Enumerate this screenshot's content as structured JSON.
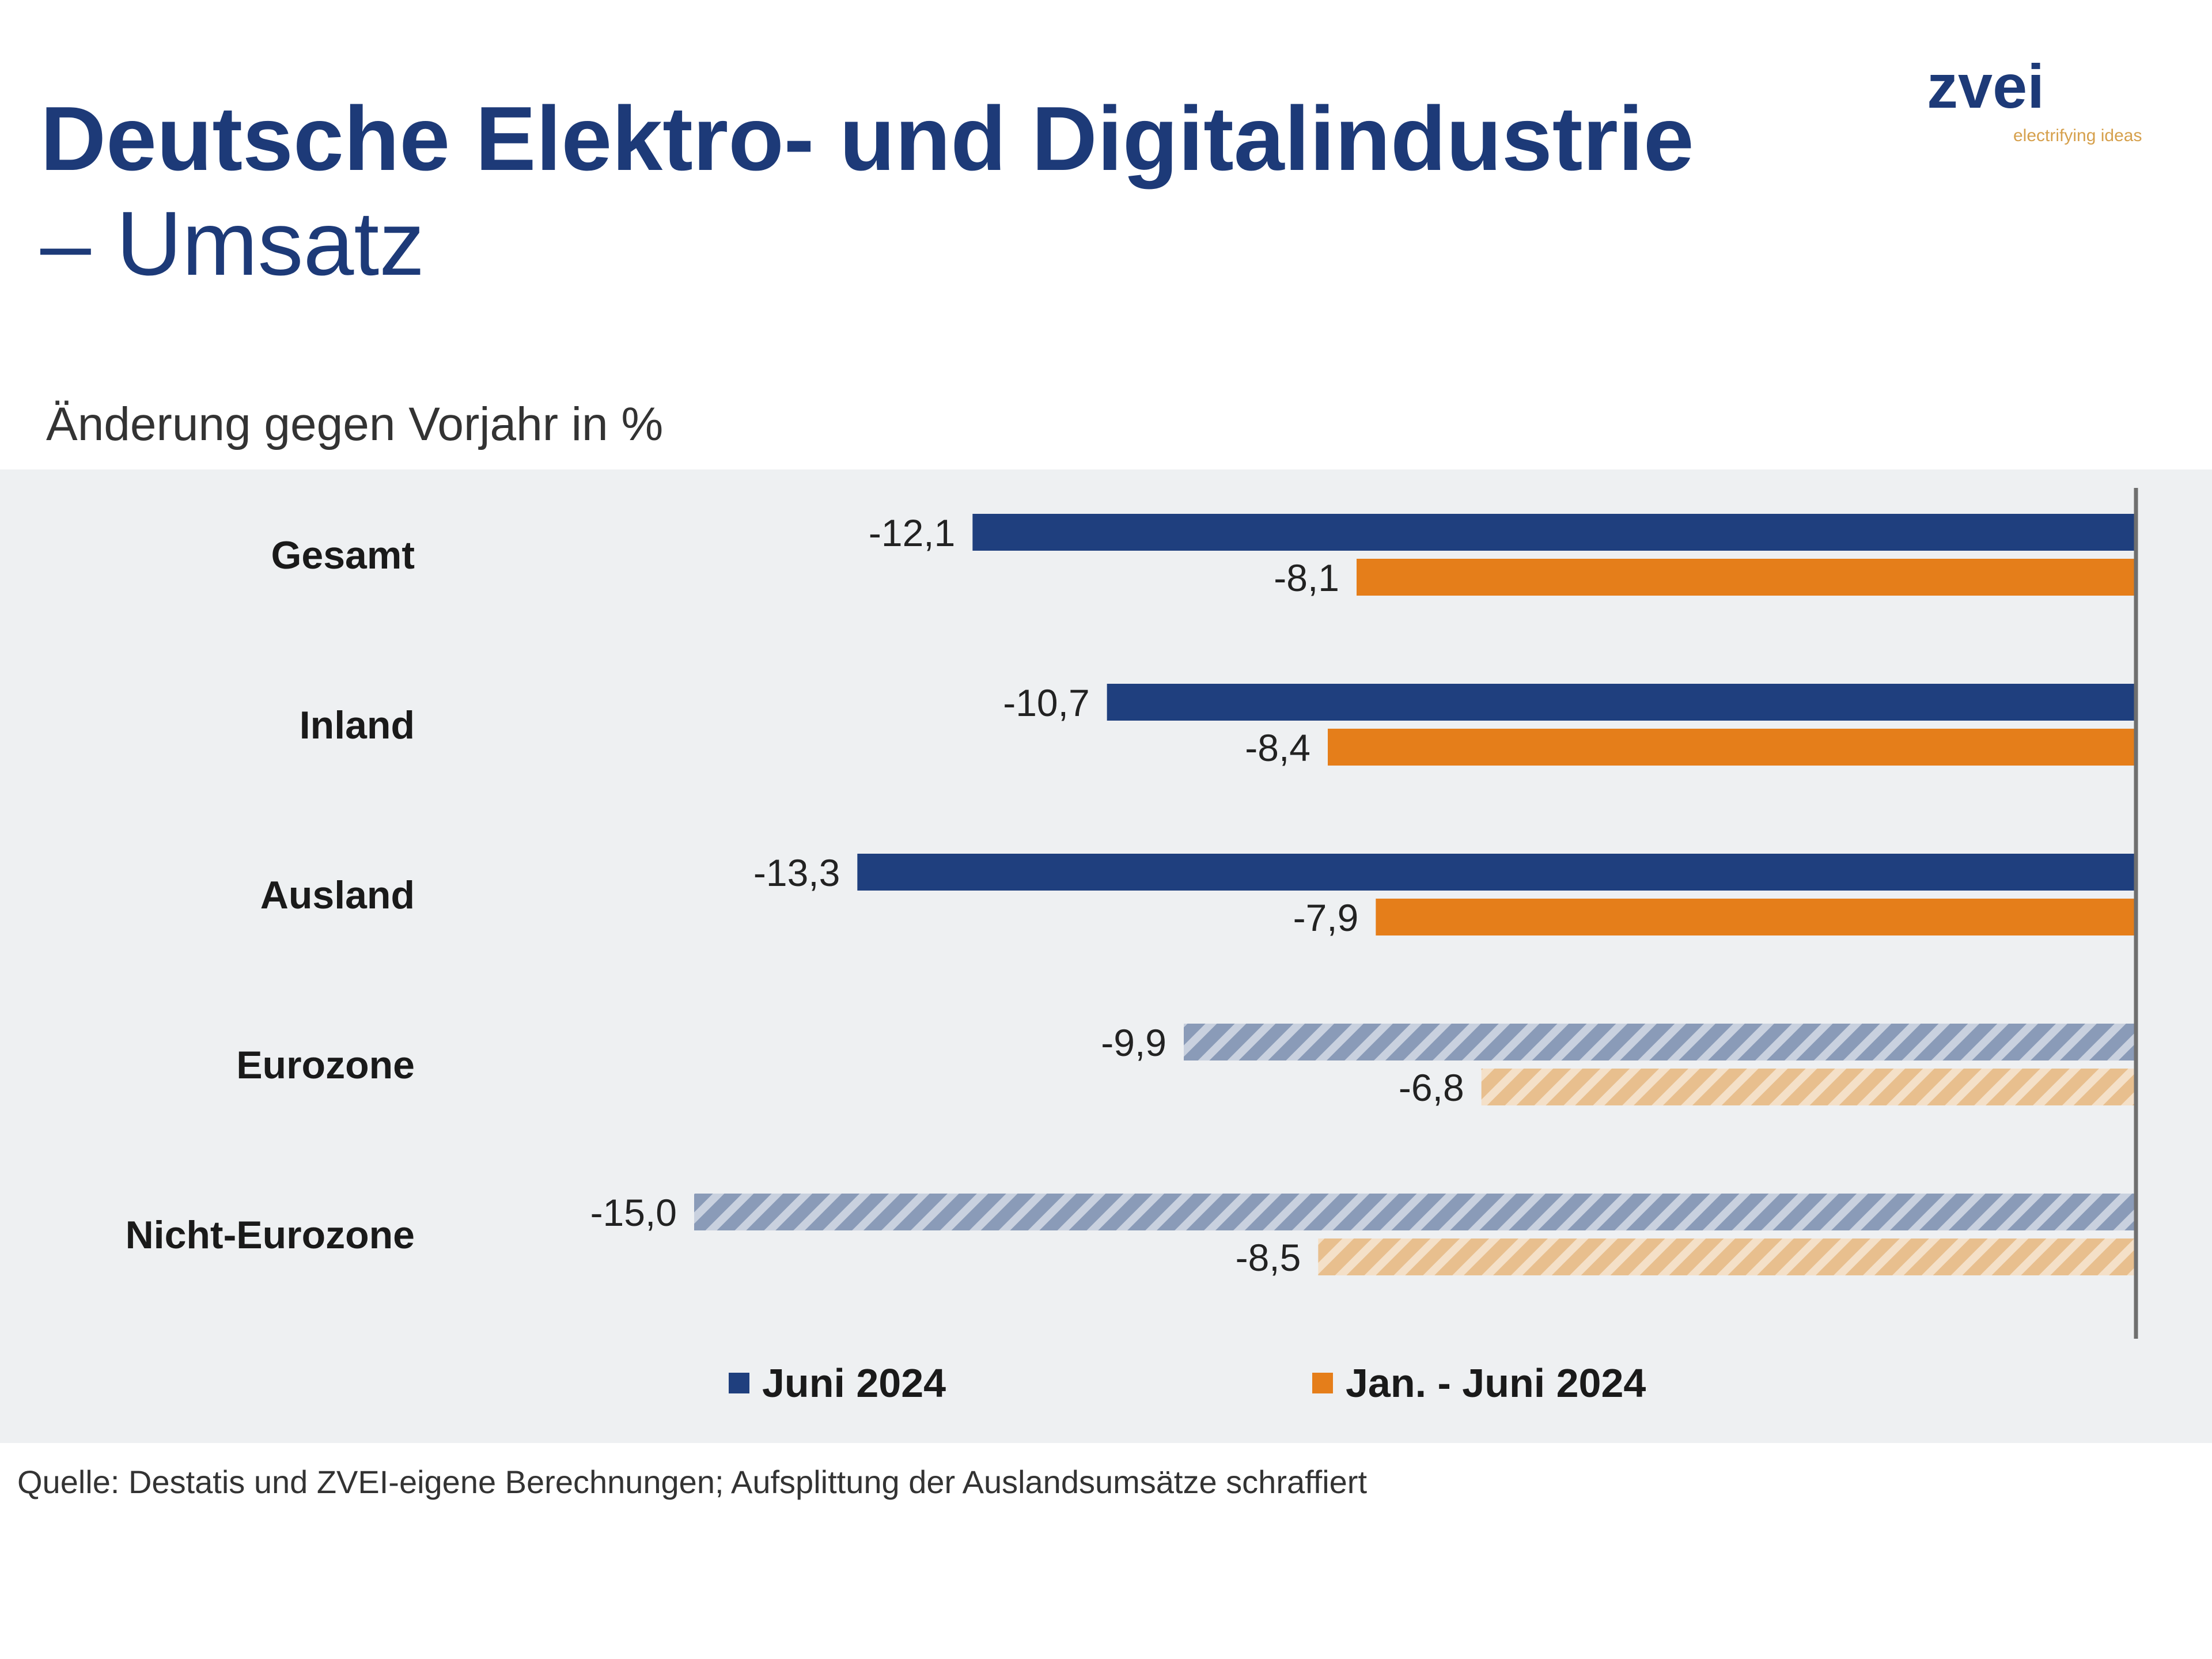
{
  "header": {
    "title_line1": "Deutsche Elektro- und Digitalindustrie",
    "title_line2": "– Umsatz"
  },
  "logo": {
    "word": "zvei",
    "tagline": "electrifying ideas",
    "icon": "zvei-logo"
  },
  "colors": {
    "series1": "#1f3f7e",
    "series2": "#e57e1a",
    "series1_hatched": "#8a9bb8",
    "series2_hatched": "#e8bf8e",
    "panel": "#eef0f2",
    "axis": "#6f6f6f"
  },
  "chart_data": {
    "type": "bar",
    "orientation": "horizontal",
    "title": "Deutsche Elektro- und Digitalindustrie – Umsatz",
    "subtitle": "Änderung gegen Vorjahr in %",
    "categories": [
      "Gesamt",
      "Inland",
      "Ausland",
      "Eurozone",
      "Nicht-Eurozone"
    ],
    "hatched_categories": [
      "Eurozone",
      "Nicht-Eurozone"
    ],
    "series": [
      {
        "name": "Juni 2024",
        "values": [
          -12.1,
          -10.7,
          -13.3,
          -9.9,
          -15.0
        ],
        "labels": [
          "-12,1",
          "-10,7",
          "-13,3",
          "-9,9",
          "-15,0"
        ]
      },
      {
        "name": "Jan. - Juni 2024",
        "values": [
          -8.1,
          -8.4,
          -7.9,
          -6.8,
          -8.5
        ],
        "labels": [
          "-8,1",
          "-8,4",
          "-7,9",
          "-6,8",
          "-8,5"
        ]
      }
    ],
    "xlim": [
      -15.0,
      0
    ],
    "legend_position": "bottom",
    "grid": false
  },
  "source": "Quelle: Destatis und ZVEI-eigene Berechnungen; Aufsplittung der Auslandsumsätze schraffiert"
}
